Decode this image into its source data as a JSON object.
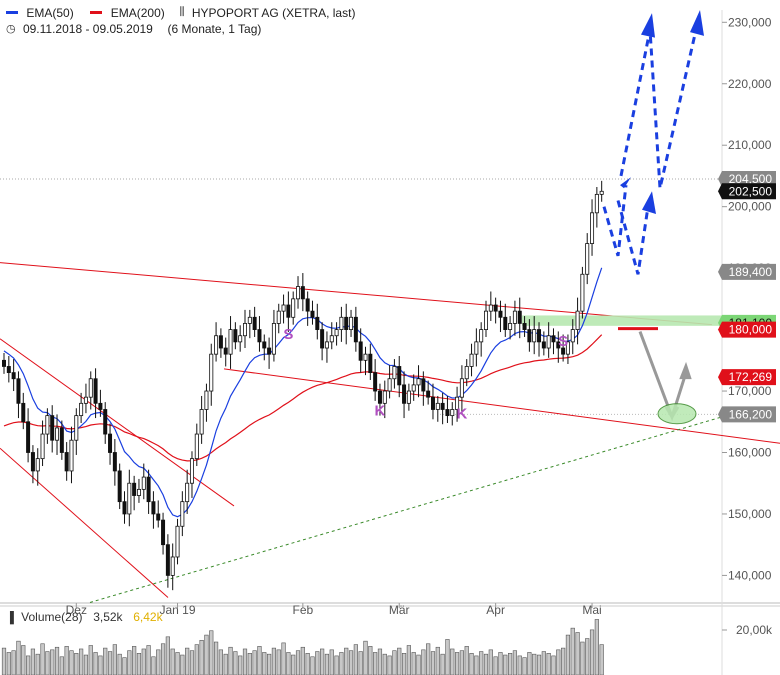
{
  "header": {
    "ema50_label": "EMA(50)",
    "ema200_label": "EMA(200)",
    "title": "HYPOPORT AG (XETRA, last)",
    "range": "09.11.2018 - 09.05.2019",
    "range_detail": "(6 Monate, 1 Tag)",
    "ema50_color": "#1a3fe0",
    "ema200_color": "#e0101a"
  },
  "volume_header": {
    "label": "Volume(28)",
    "value1": "3,52k",
    "value2": "6,42k",
    "value2_color": "#e0b000"
  },
  "chart_data": {
    "type": "candlestick",
    "y_ticks": [
      "140,000",
      "150,000",
      "160,000",
      "170,000",
      "180,000",
      "190,000",
      "200,000",
      "210,000",
      "220,000",
      "230,000"
    ],
    "y_tick_values": [
      140000,
      150000,
      160000,
      170000,
      180000,
      190000,
      200000,
      210000,
      220000,
      230000
    ],
    "ylim": [
      136000,
      232000
    ],
    "x_tick_labels": [
      "Dez",
      "Jan 19",
      "Feb",
      "Mär",
      "Apr",
      "Mai"
    ],
    "x_tick_days": [
      15,
      36,
      62,
      82,
      102,
      122
    ],
    "price_labels": [
      {
        "text": "204,500",
        "value": 204500,
        "style": "gray"
      },
      {
        "text": "202,500",
        "value": 202500,
        "style": "black"
      },
      {
        "text": "189,400",
        "value": 189400,
        "style": "gray"
      },
      {
        "text": "181,100",
        "value": 181100,
        "style": "green"
      },
      {
        "text": "180,000",
        "value": 180000,
        "style": "red"
      },
      {
        "text": "172,269",
        "value": 172269,
        "style": "red"
      },
      {
        "text": "166,200",
        "value": 166200,
        "style": "gray"
      }
    ],
    "pattern_labels": [
      {
        "text": "S",
        "day": 59,
        "value": 178500
      },
      {
        "text": "K",
        "day": 78,
        "value": 166000
      },
      {
        "text": "K",
        "day": 95,
        "value": 165500
      },
      {
        "text": "S",
        "day": 116,
        "value": 177300
      }
    ],
    "closes": [
      174,
      173,
      172,
      168,
      165,
      160,
      157,
      159,
      163,
      166,
      162,
      164,
      160,
      157,
      162,
      166,
      168,
      169,
      172,
      168,
      167,
      163,
      160,
      157,
      152,
      150,
      155,
      153,
      154,
      156,
      152,
      150,
      149,
      145,
      140,
      143,
      148,
      152,
      155,
      159,
      163,
      167,
      170,
      176,
      179,
      177,
      176,
      180,
      178,
      179,
      181,
      182,
      180,
      178,
      177,
      176,
      181,
      183,
      184,
      182,
      185,
      187,
      185,
      183,
      182,
      180,
      177,
      178,
      179,
      180,
      182,
      180,
      182,
      178,
      175,
      176,
      173,
      170,
      168,
      170,
      172,
      174,
      171,
      168,
      170,
      171,
      172,
      170,
      169,
      167,
      168,
      167,
      166,
      167,
      169,
      172,
      174,
      176,
      178,
      180,
      183,
      184,
      183,
      182,
      180,
      181,
      183,
      181,
      180,
      178,
      180,
      178,
      177,
      179,
      178,
      177,
      176,
      178,
      180,
      183,
      189,
      194,
      199,
      202,
      202.5
    ],
    "volume": [
      3.1,
      2.6,
      2.8,
      3.9,
      3.4,
      2.2,
      3.0,
      2.4,
      3.6,
      2.7,
      2.9,
      3.2,
      2.1,
      3.3,
      2.8,
      2.5,
      3.0,
      2.3,
      3.4,
      2.6,
      2.2,
      3.1,
      2.7,
      3.5,
      2.4,
      2.0,
      2.8,
      3.3,
      2.5,
      3.0,
      3.4,
      2.1,
      2.9,
      3.6,
      4.4,
      3.0,
      2.6,
      2.3,
      3.1,
      2.8,
      3.5,
      4.0,
      4.6,
      5.1,
      3.8,
      2.9,
      2.4,
      3.2,
      2.7,
      2.2,
      3.0,
      2.5,
      2.8,
      3.3,
      2.6,
      2.4,
      3.1,
      2.9,
      3.7,
      2.6,
      2.3,
      2.8,
      3.2,
      2.5,
      2.1,
      2.7,
      3.0,
      2.4,
      2.9,
      2.2,
      2.6,
      3.1,
      2.8,
      3.5,
      2.7,
      3.9,
      3.3,
      2.6,
      3.0,
      2.4,
      2.2,
      2.8,
      3.1,
      2.5,
      3.4,
      2.6,
      2.3,
      2.9,
      3.6,
      2.7,
      3.2,
      2.4,
      4.1,
      3.0,
      2.6,
      2.8,
      3.3,
      2.5,
      2.2,
      2.7,
      2.4,
      2.9,
      2.1,
      2.6,
      2.3,
      2.5,
      2.8,
      2.2,
      2.0,
      2.6,
      2.4,
      2.3,
      2.7,
      2.5,
      2.2,
      2.9,
      3.1,
      4.6,
      5.4,
      4.9,
      3.8,
      4.2,
      5.2,
      6.4,
      3.5
    ],
    "vol_ticks": [
      "20,00k"
    ],
    "ema50_label": "EMA(50)",
    "ema200_label": "EMA(200)"
  }
}
